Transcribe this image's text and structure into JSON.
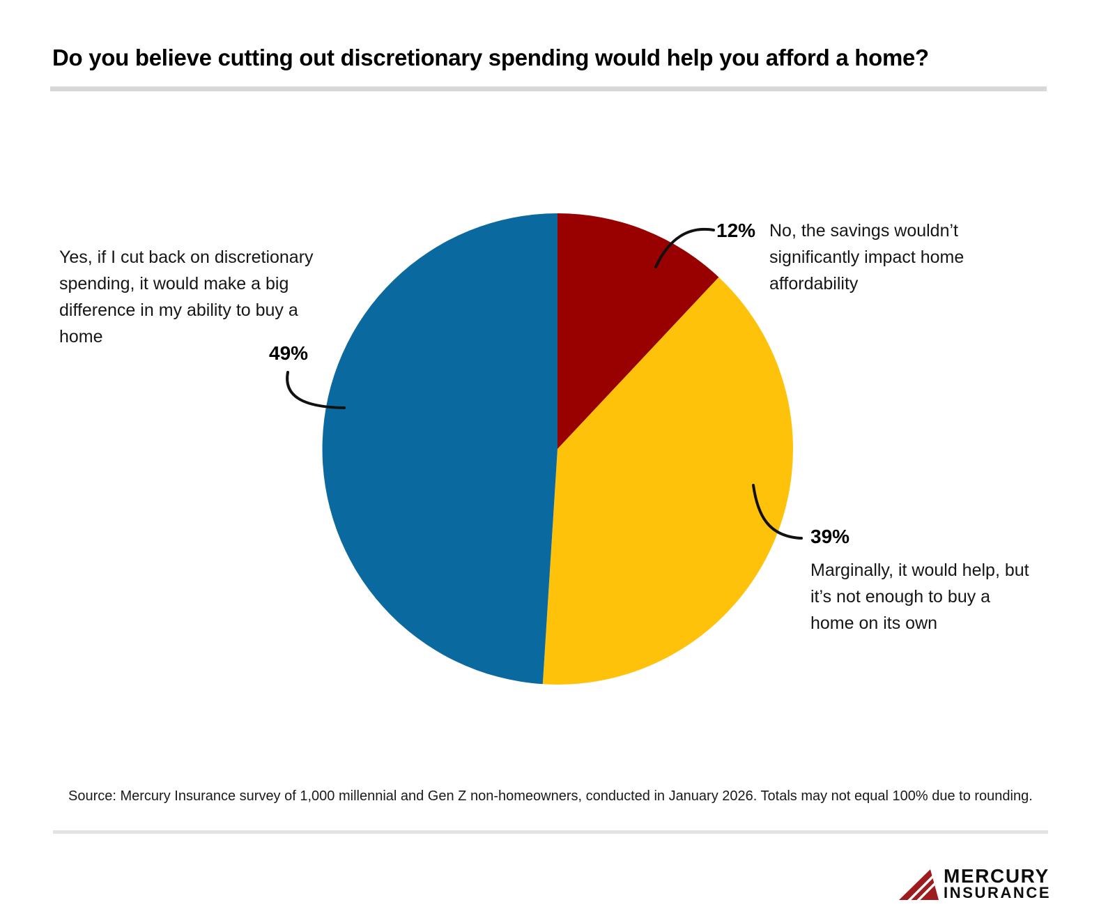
{
  "header": {
    "title": "Do you believe cutting out discretionary spending would help you afford a home?"
  },
  "chart_data": {
    "type": "pie",
    "title": "Do you believe cutting out discretionary spending would help you afford a home?",
    "start_angle": "top",
    "direction": "clockwise",
    "slices": [
      {
        "label": "No, the savings wouldn’t significantly impact home affordability",
        "pct_label": "12%",
        "value": 12,
        "color": "#990000"
      },
      {
        "label": "Marginally, it would help, but it’s not enough to buy a home on its own",
        "pct_label": "39%",
        "value": 39,
        "color": "#FFC20A"
      },
      {
        "label": "Yes, if I cut back on discretionary spending, it would make a big difference in my ability to buy a home",
        "pct_label": "49%",
        "value": 49,
        "color": "#0A699E"
      }
    ]
  },
  "annotations": {
    "yes": {
      "lines": [
        "Yes, if I cut back on discretionary",
        "spending, it would make a big",
        "difference in my ability to buy a",
        "home"
      ]
    },
    "no": {
      "lines": [
        "No, the savings wouldn’t",
        "significantly impact home",
        "affordability"
      ]
    },
    "marginal": {
      "lines": [
        "Marginally, it would help, but",
        "it’s not enough to buy a",
        "home on its own"
      ]
    }
  },
  "footer": {
    "source": "Source: Mercury Insurance survey of 1,000 millennial and Gen Z non-homeowners, conducted in January 2026. Totals may not equal 100% due to rounding.",
    "logo": {
      "word1": "MERCURY",
      "word2": "INSURANCE",
      "triangle_color": "#9E1B1E"
    }
  }
}
